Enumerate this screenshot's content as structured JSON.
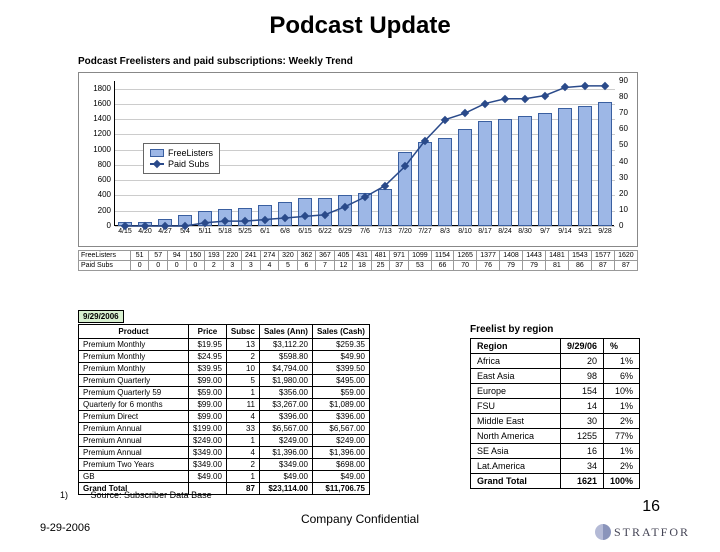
{
  "title": "Podcast Update",
  "subtitle": "Podcast Freelisters and paid subscriptions: Weekly Trend",
  "chart": {
    "type": "bar+line",
    "left_ylim": [
      0,
      1900
    ],
    "left_tick": 200,
    "right_ylim": [
      0,
      90
    ],
    "right_tick": 10,
    "categories": [
      "4/15",
      "4/20",
      "4/27",
      "5/4",
      "5/11",
      "5/18",
      "5/25",
      "6/1",
      "6/8",
      "6/15",
      "6/22",
      "6/29",
      "7/6",
      "7/13",
      "7/20",
      "7/27",
      "8/3",
      "8/10",
      "8/17",
      "8/24",
      "8/30",
      "9/7",
      "9/14",
      "9/21",
      "9/28"
    ],
    "series": [
      {
        "name": "FreeListers",
        "type": "bar",
        "color": "#9db7e6",
        "border": "#3a5fa0",
        "values": [
          51,
          57,
          94,
          150,
          193,
          220,
          241,
          274,
          320,
          362,
          367,
          405,
          431,
          481,
          971,
          1099,
          1154,
          1265,
          1377,
          1408,
          1443,
          1481,
          1543,
          1577,
          1620
        ]
      },
      {
        "name": "Paid Subs",
        "type": "line",
        "color": "#2a4a8a",
        "marker": "diamond",
        "values": [
          0,
          0,
          0,
          0,
          2,
          3,
          3,
          4,
          5,
          6,
          7,
          12,
          18,
          25,
          37,
          53,
          66,
          70,
          76,
          79,
          79,
          81,
          86,
          87,
          87
        ]
      }
    ],
    "legend_pos": "inside-left",
    "background": "#ffffff",
    "grid_color": "#cccccc"
  },
  "under_rows": [
    {
      "label": "FreeListers",
      "vals": [
        51,
        57,
        94,
        150,
        193,
        220,
        241,
        274,
        320,
        362,
        367,
        405,
        431,
        481,
        971,
        1099,
        1154,
        1265,
        1377,
        1408,
        1443,
        1481,
        1543,
        1577,
        1620
      ]
    },
    {
      "label": "Paid Subs",
      "vals": [
        0,
        0,
        0,
        0,
        2,
        3,
        3,
        4,
        5,
        6,
        7,
        12,
        18,
        25,
        37,
        53,
        66,
        70,
        76,
        79,
        79,
        81,
        86,
        87,
        87
      ]
    }
  ],
  "date_box": "9/29/2006",
  "product_table": {
    "headers": [
      "Product",
      "Price",
      "Subsc",
      "Sales (Ann)",
      "Sales (Cash)"
    ],
    "rows": [
      [
        "Premium Monthly",
        "$19.95",
        "13",
        "$3,112.20",
        "$259.35"
      ],
      [
        "Premium Monthly",
        "$24.95",
        "2",
        "$598.80",
        "$49.90"
      ],
      [
        "Premium Monthly",
        "$39.95",
        "10",
        "$4,794.00",
        "$399.50"
      ],
      [
        "Premium Quarterly",
        "$99.00",
        "5",
        "$1,980.00",
        "$495.00"
      ],
      [
        "Premium Quarterly 59",
        "$59.00",
        "1",
        "$356.00",
        "$59.00"
      ],
      [
        "Quarterly for 6 months",
        "$99.00",
        "11",
        "$3,267.00",
        "$1,089.00"
      ],
      [
        "Premium Direct",
        "$99.00",
        "4",
        "$396.00",
        "$396.00"
      ],
      [
        "Premium Annual",
        "$199.00",
        "33",
        "$6,567.00",
        "$6,567.00"
      ],
      [
        "Premium Annual",
        "$249.00",
        "1",
        "$249.00",
        "$249.00"
      ],
      [
        "Premium Annual",
        "$349.00",
        "4",
        "$1,396.00",
        "$1,396.00"
      ],
      [
        "Premium Two Years",
        "$349.00",
        "2",
        "$349.00",
        "$698.00"
      ],
      [
        "GB",
        "$49.00",
        "1",
        "$49.00",
        "$49.00"
      ]
    ],
    "total": [
      "Grand Total",
      "",
      "87",
      "$23,114.00",
      "$11,706.75"
    ]
  },
  "region_title": "Freelist by region",
  "region_table": {
    "headers": [
      "Region",
      "9/29/06",
      "%"
    ],
    "rows": [
      [
        "Africa",
        "20",
        "1%"
      ],
      [
        "East Asia",
        "98",
        "6%"
      ],
      [
        "Europe",
        "154",
        "10%"
      ],
      [
        "FSU",
        "14",
        "1%"
      ],
      [
        "Middle East",
        "30",
        "2%"
      ],
      [
        "North America",
        "1255",
        "77%"
      ],
      [
        "SE Asia",
        "16",
        "1%"
      ],
      [
        "Lat.America",
        "34",
        "2%"
      ]
    ],
    "total": [
      "Grand Total",
      "1621",
      "100%"
    ]
  },
  "footnote": {
    "num": "1)",
    "text": "Source: Subscriber Data Base"
  },
  "footer_date": "9-29-2006",
  "confidential": "Company Confidential",
  "page": "16",
  "logo_text": "STRATFOR"
}
